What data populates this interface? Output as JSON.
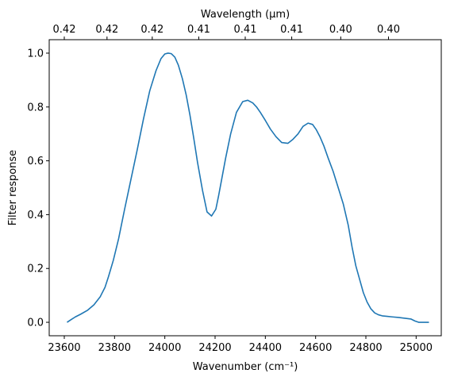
{
  "chart_data": {
    "type": "line",
    "xlabel": "Wavenumber (cm⁻¹)",
    "ylabel": "Filter response",
    "top_xlabel": "Wavelength (μm)",
    "xlim": [
      23540,
      25100
    ],
    "ylim": [
      -0.05,
      1.05
    ],
    "grid": false,
    "colors": {
      "line": "#1f77b4",
      "axes": "#000000"
    },
    "x_ticks": [
      23600,
      23800,
      24000,
      24200,
      24400,
      24600,
      24800,
      25000
    ],
    "x_tick_labels": [
      "23600",
      "23800",
      "24000",
      "24200",
      "24400",
      "24600",
      "24800",
      "25000"
    ],
    "y_ticks": [
      0.0,
      0.2,
      0.4,
      0.6,
      0.8,
      1.0
    ],
    "y_tick_labels": [
      "0.0",
      "0.2",
      "0.4",
      "0.6",
      "0.8",
      "1.0"
    ],
    "top_ticks": [
      23600,
      23770,
      23950,
      24135,
      24320,
      24505,
      24700,
      24890
    ],
    "top_tick_labels": [
      "0.42",
      "0.42",
      "0.42",
      "0.41",
      "0.41",
      "0.41",
      "0.40",
      "0.40"
    ],
    "series": [
      {
        "x": [
          23611,
          23627,
          23644,
          23665,
          23693,
          23718,
          23743,
          23762,
          23776,
          23795,
          23816,
          23840,
          23865,
          23890,
          23915,
          23940,
          23965,
          23985,
          24000,
          24013,
          24026,
          24040,
          24054,
          24070,
          24085,
          24100,
          24115,
          24130,
          24150,
          24168,
          24186,
          24203,
          24214,
          24228,
          24242,
          24262,
          24285,
          24310,
          24330,
          24350,
          24365,
          24380,
          24400,
          24420,
          24442,
          24465,
          24490,
          24510,
          24530,
          24550,
          24570,
          24588,
          24603,
          24617,
          24633,
          24650,
          24670,
          24690,
          24710,
          24730,
          24745,
          24760,
          24775,
          24790,
          24805,
          24820,
          24835,
          24850,
          24865,
          24885,
          24905,
          24930,
          24955,
          24980,
          24995,
          25010,
          25025,
          25040,
          25051
        ],
        "y": [
          0.0,
          0.01,
          0.02,
          0.03,
          0.045,
          0.065,
          0.095,
          0.13,
          0.17,
          0.23,
          0.31,
          0.42,
          0.53,
          0.64,
          0.755,
          0.86,
          0.935,
          0.98,
          0.997,
          1.0,
          0.998,
          0.985,
          0.955,
          0.905,
          0.845,
          0.77,
          0.685,
          0.595,
          0.49,
          0.41,
          0.395,
          0.42,
          0.47,
          0.54,
          0.61,
          0.7,
          0.78,
          0.82,
          0.825,
          0.815,
          0.8,
          0.78,
          0.75,
          0.718,
          0.69,
          0.668,
          0.665,
          0.68,
          0.7,
          0.728,
          0.74,
          0.735,
          0.715,
          0.69,
          0.655,
          0.61,
          0.56,
          0.5,
          0.44,
          0.36,
          0.28,
          0.21,
          0.16,
          0.11,
          0.075,
          0.05,
          0.035,
          0.028,
          0.024,
          0.022,
          0.02,
          0.018,
          0.015,
          0.012,
          0.005,
          0.0,
          0.0,
          0.0,
          0.0
        ]
      }
    ]
  }
}
